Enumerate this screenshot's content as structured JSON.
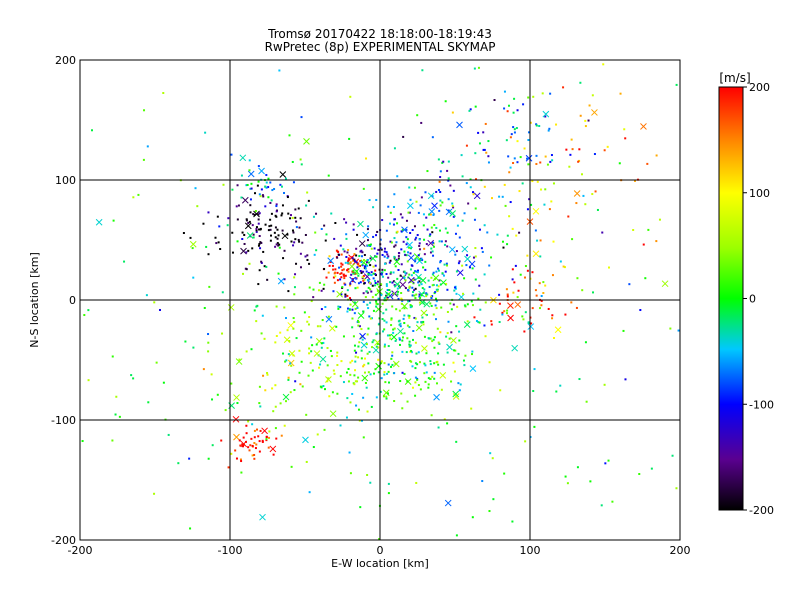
{
  "chart_data": {
    "type": "scatter",
    "title": "Tromsø 20170422 18:18:00-18:19:43",
    "subtitle": "RwPretec (8p) EXPERIMENTAL SKYMAP",
    "xlabel": "E-W location [km]",
    "ylabel": "N-S location [km]",
    "xlim": [
      -200,
      200
    ],
    "ylim": [
      -200,
      200
    ],
    "x_ticks": [
      "-200",
      "-100",
      "0",
      "100",
      "200"
    ],
    "y_ticks": [
      "200",
      "100",
      "0",
      "-100",
      "-200"
    ],
    "grid": true,
    "colorbar": {
      "label": "[m/s]",
      "range": [
        -200,
        200
      ],
      "ticks": [
        "200",
        "100",
        "0",
        "-100",
        "-200"
      ]
    },
    "markers": [
      "dot",
      "cross"
    ],
    "clusters": [
      {
        "x": -75,
        "y": 55,
        "spread": 18,
        "velocity": -200,
        "count": 140
      },
      {
        "x": -80,
        "y": 95,
        "spread": 10,
        "velocity": -60,
        "count": 40
      },
      {
        "x": -25,
        "y": 25,
        "spread": 7,
        "velocity": 200,
        "count": 70
      },
      {
        "x": 0,
        "y": 30,
        "spread": 18,
        "velocity": -140,
        "count": 160
      },
      {
        "x": 20,
        "y": 10,
        "spread": 22,
        "velocity": -20,
        "count": 260
      },
      {
        "x": 10,
        "y": -40,
        "spread": 28,
        "velocity": 10,
        "count": 260
      },
      {
        "x": -50,
        "y": -50,
        "spread": 30,
        "velocity": 60,
        "count": 100
      },
      {
        "x": 40,
        "y": 60,
        "spread": 30,
        "velocity": -80,
        "count": 140
      },
      {
        "x": -85,
        "y": -120,
        "spread": 8,
        "velocity": 200,
        "count": 50
      },
      {
        "x": 110,
        "y": 100,
        "spread": 40,
        "velocity": 130,
        "count": 80
      },
      {
        "x": 90,
        "y": 140,
        "spread": 25,
        "velocity": -70,
        "count": 50
      },
      {
        "x": 100,
        "y": 0,
        "spread": 15,
        "velocity": 170,
        "count": 40
      },
      {
        "x": 0,
        "y": 0,
        "spread": 110,
        "velocity": 0,
        "count": 380
      }
    ]
  }
}
